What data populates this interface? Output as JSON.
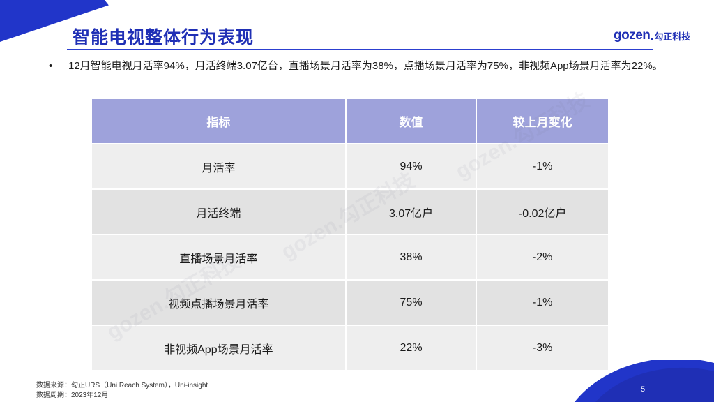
{
  "slide": {
    "title": "智能电视整体行为表现",
    "brand_word": "gozen",
    "brand_cn": "勾正科技",
    "bullet": "12月智能电视月活率94%，月活终端3.07亿台，直播场景月活率为38%，点播场景月活率为75%，非视频App场景月活率为22%。",
    "watermark_text": "gozen.勾正科技",
    "page_number": "5",
    "accent_color": "#1f2fb5",
    "header_color": "#9ea2db"
  },
  "table": {
    "headers": [
      "指标",
      "数值",
      "较上月变化"
    ],
    "rows": [
      {
        "metric": "月活率",
        "value": "94%",
        "change": "-1%"
      },
      {
        "metric": "月活终端",
        "value": "3.07亿户",
        "change": "-0.02亿户"
      },
      {
        "metric": "直播场景月活率",
        "value": "38%",
        "change": "-2%"
      },
      {
        "metric": "视频点播场景月活率",
        "value": "75%",
        "change": "-1%"
      },
      {
        "metric": "非视频App场景月活率",
        "value": "22%",
        "change": "-3%"
      }
    ]
  },
  "footer": {
    "source": "数据来源：勾正URS（Uni Reach System），Uni-insight",
    "period": "数据周期：2023年12月"
  }
}
